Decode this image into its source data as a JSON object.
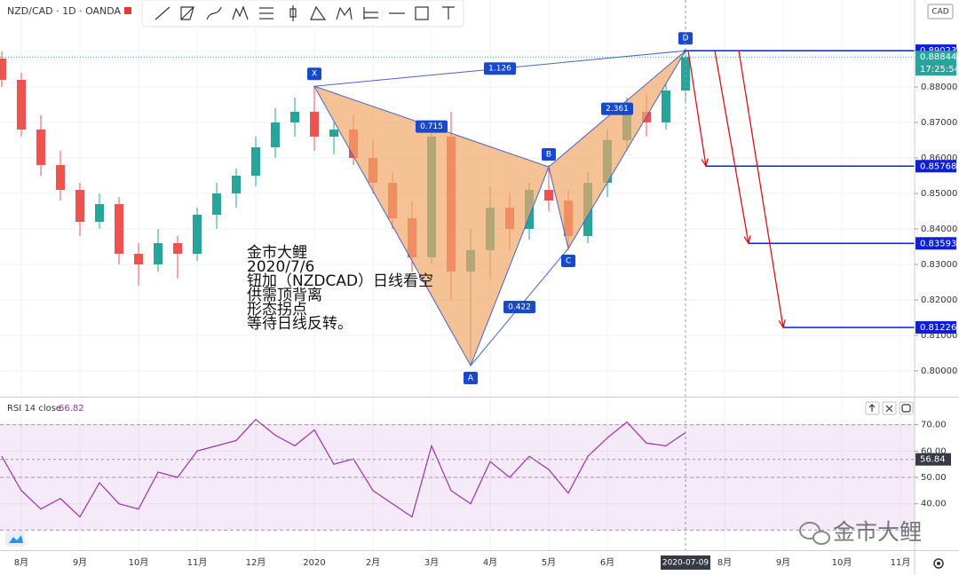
{
  "chart_data": [
    {
      "type": "candlestick",
      "title": "NZD/CAD · 1D · OANDA",
      "currency": "CAD",
      "categories": [
        null,
        "8月",
        null,
        null,
        "9月",
        null,
        null,
        "10月",
        null,
        null,
        "11月",
        null,
        null,
        "12月",
        null,
        null,
        "2020",
        null,
        null,
        "2月",
        null,
        null,
        "3月",
        null,
        null,
        "4月",
        null,
        null,
        "5月",
        null,
        null,
        "6月",
        null,
        null,
        null,
        "2020-07-09",
        null,
        "8月",
        null,
        null,
        "9月",
        null,
        null,
        "10月",
        null,
        null,
        "11月"
      ],
      "open": [
        0.888,
        0.882,
        0.868,
        0.858,
        0.851,
        0.842,
        0.847,
        0.833,
        0.83,
        0.836,
        0.833,
        0.844,
        0.85,
        0.855,
        0.863,
        0.87,
        0.873,
        0.866,
        0.868,
        0.86,
        0.853,
        0.843,
        0.832,
        0.866,
        0.828,
        0.834,
        0.846,
        0.84,
        0.851,
        0.848,
        0.838,
        0.853,
        0.865,
        0.873,
        0.87,
        0.879,
        null,
        null,
        null,
        null,
        null,
        null,
        null,
        null,
        null,
        null,
        null
      ],
      "high": [
        0.89,
        0.884,
        0.872,
        0.862,
        0.853,
        0.85,
        0.849,
        0.836,
        0.84,
        0.838,
        0.846,
        0.853,
        0.857,
        0.866,
        0.874,
        0.877,
        0.8803,
        0.87,
        0.872,
        0.865,
        0.856,
        0.848,
        0.87,
        0.873,
        0.84,
        0.852,
        0.85,
        0.853,
        0.858,
        0.851,
        0.856,
        0.868,
        0.877,
        0.878,
        0.881,
        0.8902,
        null,
        null,
        null,
        null,
        null,
        null,
        null,
        null,
        null,
        null,
        null
      ],
      "low": [
        0.88,
        0.866,
        0.855,
        0.848,
        0.838,
        0.84,
        0.83,
        0.824,
        0.828,
        0.826,
        0.831,
        0.84,
        0.846,
        0.852,
        0.86,
        0.866,
        0.862,
        0.861,
        0.858,
        0.85,
        0.84,
        0.828,
        0.83,
        0.82,
        0.8015,
        0.826,
        0.834,
        0.837,
        0.845,
        0.834,
        0.836,
        0.849,
        0.862,
        0.866,
        0.868,
        0.876,
        null,
        null,
        null,
        null,
        null,
        null,
        null,
        null,
        null,
        null,
        null
      ],
      "close": [
        0.882,
        0.868,
        0.858,
        0.851,
        0.842,
        0.847,
        0.833,
        0.83,
        0.836,
        0.833,
        0.844,
        0.85,
        0.855,
        0.863,
        0.87,
        0.873,
        0.866,
        0.868,
        0.86,
        0.853,
        0.843,
        0.832,
        0.866,
        0.828,
        0.834,
        0.846,
        0.84,
        0.851,
        0.848,
        0.838,
        0.853,
        0.865,
        0.873,
        0.87,
        0.879,
        0.8884,
        null,
        null,
        null,
        null,
        null,
        null,
        null,
        null,
        null,
        null,
        null
      ],
      "up_color": "#26a69a",
      "down_color": "#ef5350",
      "ylim": [
        0.79275,
        0.9045
      ],
      "yticks": [
        {
          "value": 0.8,
          "label": "0.80000"
        },
        {
          "value": 0.81,
          "label": "0.81000"
        },
        {
          "value": 0.82,
          "label": "0.82000"
        },
        {
          "value": 0.83,
          "label": "0.83000"
        },
        {
          "value": 0.84,
          "label": "0.84000"
        },
        {
          "value": 0.85,
          "label": "0.85000"
        },
        {
          "value": 0.86,
          "label": "0.86000"
        },
        {
          "value": 0.87,
          "label": "0.87000"
        },
        {
          "value": 0.88,
          "label": "0.88000"
        },
        {
          "value": 0.89,
          "label": "0.89000"
        }
      ],
      "grid": true,
      "last": 0.88844,
      "countdown": "17:25:54",
      "levels": [
        0.89023,
        0.85768,
        0.83593,
        0.81226
      ],
      "level_color": "#0d1fd8",
      "pattern": {
        "color": "#f0a868",
        "points": [
          {
            "label": "X",
            "bar": 16,
            "price": 0.8802
          },
          {
            "label": "A",
            "bar": 24,
            "price": 0.8015
          },
          {
            "label": "B",
            "bar": 28,
            "price": 0.8575
          },
          {
            "label": "C",
            "bar": 29,
            "price": 0.8345
          },
          {
            "label": "D",
            "bar": 35,
            "price": 0.8902
          }
        ],
        "ratios": [
          "1.126",
          "0.715",
          "0.422",
          "2.361"
        ]
      },
      "annotation": [
        "金市大鲤",
        "2020/7/6",
        "钮加（NZDCAD）日线看空",
        "供需顶背离",
        "形态拐点",
        "等待日线反转。"
      ],
      "watermark": "金市大鲤"
    },
    {
      "type": "line",
      "title": "RSI 14 close",
      "last_value": 66.82,
      "cursor_value": 56.84,
      "color": "#9b30b0",
      "values": [
        58,
        45,
        38,
        42,
        35,
        48,
        40,
        38,
        52,
        50,
        60,
        62,
        64,
        72,
        66,
        62,
        68,
        55,
        57,
        45,
        40,
        35,
        62,
        45,
        40,
        56,
        50,
        58,
        53,
        44,
        58,
        65,
        71,
        63,
        62,
        67
      ],
      "ylim": [
        22.4,
        80.3
      ],
      "yticks": [
        {
          "value": 40,
          "label": "40.00"
        },
        {
          "value": 50,
          "label": "50.00"
        },
        {
          "value": 60,
          "label": "60.00"
        },
        {
          "value": 70,
          "label": "70.00"
        }
      ],
      "levels": [
        70,
        50,
        30
      ]
    }
  ]
}
